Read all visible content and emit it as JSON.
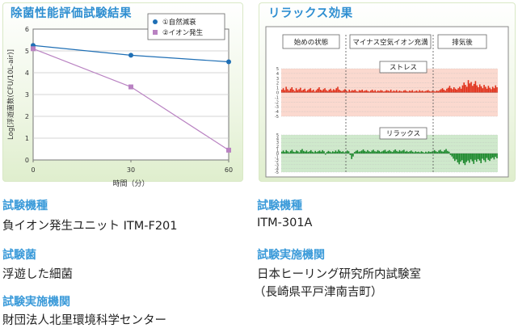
{
  "left_panel": {
    "title": "除菌性能評価試験結果",
    "chart_data": {
      "type": "line",
      "title": "",
      "xlabel": "時間（分）",
      "ylabel": "Log[浮遊菌数(CFU/10L-air)]",
      "x": [
        0,
        30,
        60
      ],
      "xticks": [
        0,
        30,
        60
      ],
      "yticks": [
        0,
        1,
        2,
        3,
        4,
        5,
        6
      ],
      "xlim": [
        0,
        60
      ],
      "ylim": [
        0,
        6
      ],
      "grid": "horizontal",
      "legend_position": "top-right",
      "series": [
        {
          "name": "①自然減衰",
          "values": [
            5.25,
            4.8,
            4.5
          ],
          "color": "#1f6fb5",
          "marker": "circle"
        },
        {
          "name": "②イオン発生",
          "values": [
            5.1,
            3.35,
            0.45
          ],
          "color": "#b982c2",
          "marker": "square"
        }
      ]
    }
  },
  "right_panel": {
    "title": "リラックス効果",
    "phases": [
      "始めの状態",
      "マイナス空気イオン充満",
      "排気後"
    ],
    "charts": [
      {
        "label": "ストレス",
        "bg_color": "#fbd9cf",
        "bar_color": "#e0311b",
        "yticks": [
          5,
          4,
          3,
          2,
          1,
          0,
          -1,
          -2,
          -3,
          -4,
          -5
        ],
        "values": [
          0.6,
          0.9,
          0.5,
          1.2,
          0.7,
          0.4,
          0.8,
          1.1,
          0.6,
          0.3,
          0.9,
          0.5,
          0.7,
          1.0,
          0.4,
          0.6,
          0.8,
          0.3,
          0.5,
          0.7,
          0.9,
          0.4,
          0.6,
          0.2,
          0.5,
          0.8,
          1.1,
          0.6,
          0.4,
          0.7,
          0.9,
          0.5,
          0.3,
          0.6,
          0.8,
          0.4,
          0.7,
          0.5,
          0.9,
          1.2,
          0.6,
          0.4,
          0.3,
          0.5,
          0.7,
          0.4,
          0.2,
          0.6,
          0.3,
          0.5,
          0.4,
          0.6,
          0.3,
          0.2,
          0.5,
          0.4,
          0.6,
          0.3,
          0.4,
          0.5,
          0.3,
          0.2,
          0.4,
          0.6,
          0.3,
          0.5,
          0.2,
          0.4,
          0.3,
          0.5,
          0.4,
          0.2,
          0.3,
          0.5,
          0.4,
          0.3,
          0.6,
          0.2,
          0.4,
          0.3,
          0.5,
          0.2,
          0.4,
          0.3,
          0.2,
          0.4,
          0.5,
          0.3,
          0.2,
          0.4,
          0.3,
          0.5,
          0.2,
          0.3,
          0.4,
          0.2,
          0.5,
          0.3,
          0.4,
          0.2,
          0.3,
          0.4,
          0.5,
          0.3,
          0.2,
          0.4,
          0.3,
          0.2,
          0.4,
          0.3,
          0.5,
          0.7,
          0.9,
          0.6,
          0.4,
          0.8,
          1.0,
          1.4,
          0.9,
          0.7,
          1.1,
          0.8,
          0.6,
          0.9,
          1.2,
          0.8,
          1.5,
          2.1,
          1.6,
          1.2,
          2.6,
          1.9,
          2.2,
          1.4,
          1.8,
          2.4,
          1.5,
          1.1,
          1.7,
          1.3,
          0.9,
          1.6,
          1.2,
          0.8,
          1.4,
          1.0,
          0.7,
          1.2,
          0.9,
          1.5,
          1.1
        ]
      },
      {
        "label": "リラックス",
        "bg_color": "#cfe9cc",
        "bar_color": "#1e8a2e",
        "yticks": [
          5,
          4,
          3,
          2,
          1,
          0,
          -1,
          -2,
          -3,
          -4,
          -5
        ],
        "values": [
          0.5,
          0.8,
          0.4,
          0.9,
          0.6,
          0.3,
          0.7,
          1.0,
          0.5,
          0.4,
          0.8,
          0.6,
          0.3,
          0.9,
          1.2,
          0.7,
          0.5,
          0.8,
          0.4,
          0.6,
          0.9,
          0.5,
          0.3,
          0.7,
          0.4,
          0.6,
          0.8,
          0.5,
          0.9,
          0.6,
          -0.3,
          0.4,
          0.7,
          0.5,
          0.3,
          0.6,
          0.4,
          0.8,
          0.5,
          1.0,
          0.7,
          0.4,
          0.6,
          0.3,
          0.5,
          0.8,
          0.6,
          -0.4,
          -1.5,
          -0.8,
          0.4,
          0.7,
          0.9,
          0.5,
          0.6,
          0.8,
          1.1,
          0.7,
          0.5,
          0.9,
          0.6,
          0.4,
          0.8,
          1.0,
          0.6,
          0.5,
          0.9,
          0.7,
          0.4,
          0.6,
          0.8,
          1.0,
          0.5,
          0.7,
          0.9,
          0.6,
          0.4,
          0.8,
          1.1,
          0.7,
          0.5,
          0.9,
          0.6,
          0.8,
          1.0,
          0.5,
          0.7,
          0.4,
          0.6,
          0.8,
          0.5,
          0.3,
          0.6,
          0.4,
          0.5,
          0.3,
          0.6,
          0.4,
          0.2,
          0.5,
          0.3,
          0.6,
          0.4,
          0.5,
          0.7,
          0.9,
          0.6,
          0.4,
          0.8,
          1.0,
          0.6,
          0.5,
          0.9,
          1.2,
          0.7,
          0.5,
          -0.4,
          -0.8,
          -1.4,
          -2.0,
          -1.6,
          -2.4,
          -2.9,
          -2.2,
          -1.8,
          -2.6,
          -3.1,
          -2.3,
          -1.9,
          -2.5,
          -1.6,
          -2.1,
          -2.8,
          -1.7,
          -2.2,
          -1.5,
          -1.9,
          -2.6,
          -1.4,
          -1.8,
          -2.3,
          -1.2,
          -1.7,
          -2.0,
          -1.4,
          -1.1,
          -1.6,
          -0.9,
          -1.3
        ]
      }
    ]
  },
  "info_left": [
    {
      "label": "試験機種",
      "value": "負イオン発生ユニット ITM-F201"
    },
    {
      "label": "試験菌",
      "value": "浮遊した細菌"
    },
    {
      "label": "試験実施機関",
      "value": "財団法人北里環境科学センター"
    }
  ],
  "info_right": [
    {
      "label": "試験機種",
      "value": "ITM-301A"
    },
    {
      "label": "試験実施機関",
      "value": "日本ヒーリング研究所内試験室",
      "value2": "（長崎県平戸津南吉町）"
    }
  ]
}
